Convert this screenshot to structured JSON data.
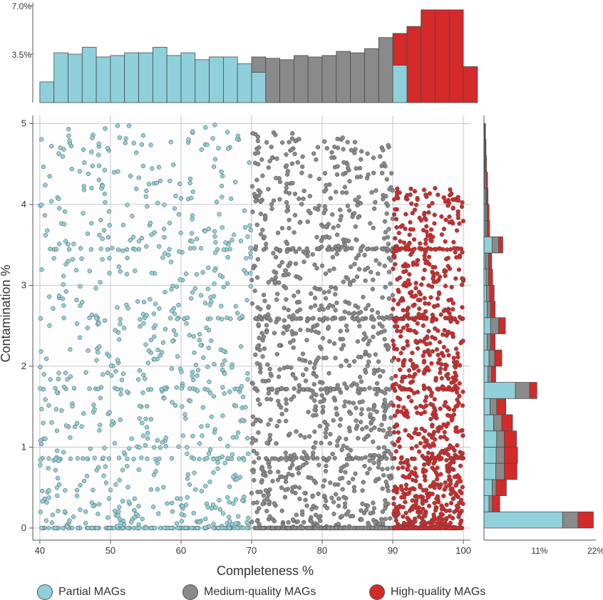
{
  "colors": {
    "partial": "#8fd0da",
    "medium": "#8a8a8a",
    "high": "#d42a2a",
    "stroke": "#4a4a4a",
    "grid": "#c8c8c8"
  },
  "chart_data": [
    {
      "type": "scatter",
      "xlabel": "Completeness %",
      "ylabel": "Contamination %",
      "xlim": [
        39,
        101
      ],
      "ylim": [
        -0.15,
        5.1
      ],
      "xticks": [
        "40",
        "50",
        "60",
        "70",
        "80",
        "90",
        "100"
      ],
      "yticks": [
        "0",
        "1",
        "2",
        "3",
        "4",
        "5"
      ],
      "grid": true,
      "series": [
        {
          "name": "Partial MAGs",
          "x_range": [
            40,
            70
          ],
          "note_point_count": 900
        },
        {
          "name": "Medium-quality MAGs",
          "x_range": [
            70,
            90
          ],
          "note_point_count": 1300
        },
        {
          "name": "High-quality MAGs",
          "x_range": [
            90,
            100
          ],
          "note_point_count": 1100
        }
      ],
      "legend": [
        "Partial MAGs",
        "Medium-quality MAGs",
        "High-quality MAGs"
      ],
      "legend_position": "bottom"
    },
    {
      "type": "bar",
      "title": "",
      "xlabel": "Completeness %",
      "ylabel": "",
      "ylim": [
        0,
        7.0
      ],
      "yticks": [
        "3.5%",
        "7.0%"
      ],
      "bins": [
        {
          "x0": 40,
          "x1": 42,
          "partial": 1.5,
          "medium": 0,
          "high": 0
        },
        {
          "x0": 42,
          "x1": 44,
          "partial": 3.6,
          "medium": 0,
          "high": 0
        },
        {
          "x0": 44,
          "x1": 46,
          "partial": 3.5,
          "medium": 0,
          "high": 0
        },
        {
          "x0": 46,
          "x1": 48,
          "partial": 4.0,
          "medium": 0,
          "high": 0
        },
        {
          "x0": 48,
          "x1": 50,
          "partial": 3.3,
          "medium": 0,
          "high": 0
        },
        {
          "x0": 50,
          "x1": 52,
          "partial": 3.4,
          "medium": 0,
          "high": 0
        },
        {
          "x0": 52,
          "x1": 54,
          "partial": 3.6,
          "medium": 0,
          "high": 0
        },
        {
          "x0": 54,
          "x1": 56,
          "partial": 3.6,
          "medium": 0,
          "high": 0
        },
        {
          "x0": 56,
          "x1": 58,
          "partial": 4.0,
          "medium": 0,
          "high": 0
        },
        {
          "x0": 58,
          "x1": 60,
          "partial": 3.4,
          "medium": 0,
          "high": 0
        },
        {
          "x0": 60,
          "x1": 62,
          "partial": 3.6,
          "medium": 0,
          "high": 0
        },
        {
          "x0": 62,
          "x1": 64,
          "partial": 3.1,
          "medium": 0,
          "high": 0
        },
        {
          "x0": 64,
          "x1": 66,
          "partial": 3.3,
          "medium": 0,
          "high": 0
        },
        {
          "x0": 66,
          "x1": 68,
          "partial": 3.3,
          "medium": 0,
          "high": 0
        },
        {
          "x0": 68,
          "x1": 70,
          "partial": 2.8,
          "medium": 0,
          "high": 0
        },
        {
          "x0": 70,
          "x1": 72,
          "partial": 2.2,
          "medium": 1.1,
          "high": 0
        },
        {
          "x0": 72,
          "x1": 74,
          "partial": 0,
          "medium": 3.2,
          "high": 0
        },
        {
          "x0": 74,
          "x1": 76,
          "partial": 0,
          "medium": 3.1,
          "high": 0
        },
        {
          "x0": 76,
          "x1": 78,
          "partial": 0,
          "medium": 3.4,
          "high": 0
        },
        {
          "x0": 78,
          "x1": 80,
          "partial": 0,
          "medium": 3.3,
          "high": 0
        },
        {
          "x0": 80,
          "x1": 82,
          "partial": 0,
          "medium": 3.4,
          "high": 0
        },
        {
          "x0": 82,
          "x1": 84,
          "partial": 0,
          "medium": 3.7,
          "high": 0
        },
        {
          "x0": 84,
          "x1": 86,
          "partial": 0,
          "medium": 3.6,
          "high": 0
        },
        {
          "x0": 86,
          "x1": 88,
          "partial": 0,
          "medium": 3.9,
          "high": 0
        },
        {
          "x0": 88,
          "x1": 90,
          "partial": 0,
          "medium": 4.7,
          "high": 0
        },
        {
          "x0": 90,
          "x1": 92,
          "partial": 2.7,
          "medium": 0,
          "high": 2.3
        },
        {
          "x0": 92,
          "x1": 94,
          "partial": 0,
          "medium": 0,
          "high": 5.5
        },
        {
          "x0": 94,
          "x1": 96,
          "partial": 0,
          "medium": 0,
          "high": 6.7
        },
        {
          "x0": 96,
          "x1": 98,
          "partial": 0,
          "medium": 0,
          "high": 6.7
        },
        {
          "x0": 98,
          "x1": 100,
          "partial": 0,
          "medium": 0,
          "high": 6.7
        },
        {
          "x0": 100,
          "x1": 102,
          "partial": 0,
          "medium": 0,
          "high": 2.6
        }
      ]
    },
    {
      "type": "bar",
      "title": "",
      "xlabel": "",
      "ylabel": "Contamination %",
      "xlim": [
        0,
        22
      ],
      "xticks": [
        "11%",
        "22%"
      ],
      "bins": [
        {
          "y0": 0.0,
          "y1": 0.2,
          "partial": 15.5,
          "medium": 3.0,
          "high": 3.0
        },
        {
          "y0": 0.2,
          "y1": 0.4,
          "partial": 1.0,
          "medium": 0.6,
          "high": 1.5
        },
        {
          "y0": 0.4,
          "y1": 0.6,
          "partial": 1.6,
          "medium": 0.8,
          "high": 2.0
        },
        {
          "y0": 0.6,
          "y1": 0.8,
          "partial": 2.3,
          "medium": 1.7,
          "high": 2.5
        },
        {
          "y0": 0.8,
          "y1": 1.0,
          "partial": 2.4,
          "medium": 1.6,
          "high": 2.6
        },
        {
          "y0": 1.0,
          "y1": 1.2,
          "partial": 2.5,
          "medium": 1.5,
          "high": 2.4
        },
        {
          "y0": 1.2,
          "y1": 1.4,
          "partial": 1.9,
          "medium": 1.6,
          "high": 2.1
        },
        {
          "y0": 1.4,
          "y1": 1.6,
          "partial": 1.2,
          "medium": 1.3,
          "high": 1.8
        },
        {
          "y0": 1.6,
          "y1": 1.8,
          "partial": 6.2,
          "medium": 2.8,
          "high": 1.4
        },
        {
          "y0": 1.8,
          "y1": 2.0,
          "partial": 0.8,
          "medium": 0.7,
          "high": 0.8
        },
        {
          "y0": 2.0,
          "y1": 2.2,
          "partial": 1.0,
          "medium": 1.1,
          "high": 1.4
        },
        {
          "y0": 2.2,
          "y1": 2.4,
          "partial": 0.6,
          "medium": 0.7,
          "high": 0.9
        },
        {
          "y0": 2.4,
          "y1": 2.6,
          "partial": 1.3,
          "medium": 1.6,
          "high": 1.3
        },
        {
          "y0": 2.6,
          "y1": 2.8,
          "partial": 0.6,
          "medium": 0.7,
          "high": 0.9
        },
        {
          "y0": 2.8,
          "y1": 3.0,
          "partial": 0.5,
          "medium": 0.6,
          "high": 0.9
        },
        {
          "y0": 3.0,
          "y1": 3.2,
          "partial": 0.4,
          "medium": 0.5,
          "high": 0.8
        },
        {
          "y0": 3.2,
          "y1": 3.4,
          "partial": 0.3,
          "medium": 0.6,
          "high": 0.6
        },
        {
          "y0": 3.4,
          "y1": 3.6,
          "partial": 1.6,
          "medium": 1.3,
          "high": 0.8
        },
        {
          "y0": 3.6,
          "y1": 3.8,
          "partial": 0.2,
          "medium": 0.4,
          "high": 0.5
        },
        {
          "y0": 3.8,
          "y1": 4.0,
          "partial": 0.2,
          "medium": 0.4,
          "high": 0.4
        },
        {
          "y0": 4.0,
          "y1": 4.2,
          "partial": 0.2,
          "medium": 0.3,
          "high": 0.3
        },
        {
          "y0": 4.2,
          "y1": 4.4,
          "partial": 0.1,
          "medium": 0.3,
          "high": 0.3
        },
        {
          "y0": 4.4,
          "y1": 4.6,
          "partial": 0.1,
          "medium": 0.2,
          "high": 0.2
        },
        {
          "y0": 4.6,
          "y1": 4.8,
          "partial": 0.1,
          "medium": 0.2,
          "high": 0.1
        },
        {
          "y0": 4.8,
          "y1": 5.0,
          "partial": 0.1,
          "medium": 0.1,
          "high": 0.1
        }
      ]
    }
  ],
  "legend": {
    "partial_label": "Partial MAGs",
    "medium_label": "Medium-quality MAGs",
    "high_label": "High-quality MAGs"
  }
}
